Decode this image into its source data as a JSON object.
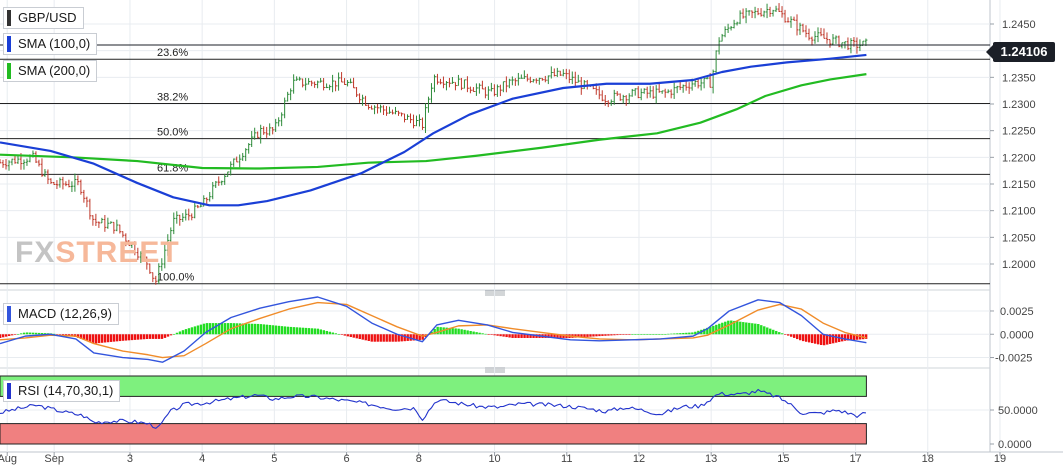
{
  "labels": {
    "symbol": "GBP/USD",
    "sma100": "SMA (100,0)",
    "sma200": "SMA (200,0)",
    "macd": "MACD (12,26,9)",
    "rsi": "RSI (14,70,30,1)",
    "last_price": "1.24106",
    "watermark_a": "FX",
    "watermark_b": "STREET"
  },
  "colors": {
    "candle_up": "#2e8b3a",
    "candle_down": "#c0392b",
    "sma100": "#1a3fd6",
    "sma200": "#22bb22",
    "macd_line": "#3355dd",
    "signal_line": "#f08c2a",
    "hist_pos": "#22dd22",
    "hist_neg": "#ee1111",
    "rsi_line": "#2233cc",
    "rsi_overbought": "#7ef07e",
    "rsi_oversold": "#f08080",
    "fib_line": "#222222",
    "grid": "#e8ecf0"
  },
  "chart_data": {
    "type": "candlestick",
    "price_axis": {
      "min": 1.1955,
      "max": 1.2495,
      "ticks": [
        "1.2450",
        "1.2400",
        "1.2350",
        "1.2300",
        "1.2250",
        "1.2200",
        "1.2150",
        "1.2100",
        "1.2050",
        "1.2000"
      ]
    },
    "x_axis": {
      "labels": [
        {
          "t": "Aug",
          "x": 0.1
        },
        {
          "t": "Sep",
          "x": 0.75
        },
        {
          "t": "3",
          "x": 1.8
        },
        {
          "t": "4",
          "x": 2.8
        },
        {
          "t": "5",
          "x": 3.8
        },
        {
          "t": "6",
          "x": 4.8
        },
        {
          "t": "8",
          "x": 5.8
        },
        {
          "t": "10",
          "x": 6.85
        },
        {
          "t": "11",
          "x": 7.85
        },
        {
          "t": "12",
          "x": 8.85
        },
        {
          "t": "13",
          "x": 9.85
        },
        {
          "t": "15",
          "x": 10.85
        },
        {
          "t": "17",
          "x": 11.85
        },
        {
          "t": "18",
          "x": 12.85
        },
        {
          "t": "19",
          "x": 13.85
        }
      ],
      "range": [
        0,
        14
      ]
    },
    "price_anchors": [
      [
        0.0,
        1.219
      ],
      [
        0.45,
        1.22
      ],
      [
        0.7,
        1.215
      ],
      [
        1.1,
        1.215
      ],
      [
        1.3,
        1.208
      ],
      [
        1.6,
        1.207
      ],
      [
        2.05,
        1.2
      ],
      [
        2.15,
        1.1965
      ],
      [
        2.4,
        1.208
      ],
      [
        2.6,
        1.209
      ],
      [
        2.8,
        1.211
      ],
      [
        3.0,
        1.215
      ],
      [
        3.3,
        1.22
      ],
      [
        3.6,
        1.225
      ],
      [
        3.8,
        1.225
      ],
      [
        4.05,
        1.234
      ],
      [
        4.4,
        1.234
      ],
      [
        4.8,
        1.234
      ],
      [
        5.1,
        1.23
      ],
      [
        5.5,
        1.228
      ],
      [
        5.7,
        1.227
      ],
      [
        5.85,
        1.226
      ],
      [
        6.0,
        1.235
      ],
      [
        6.35,
        1.234
      ],
      [
        6.8,
        1.232
      ],
      [
        7.05,
        1.234
      ],
      [
        7.4,
        1.235
      ],
      [
        7.8,
        1.2355
      ],
      [
        8.0,
        1.234
      ],
      [
        8.4,
        1.231
      ],
      [
        8.8,
        1.232
      ],
      [
        9.2,
        1.232
      ],
      [
        9.6,
        1.234
      ],
      [
        9.85,
        1.234
      ],
      [
        9.95,
        1.242
      ],
      [
        10.2,
        1.246
      ],
      [
        10.45,
        1.247
      ],
      [
        10.7,
        1.248
      ],
      [
        10.9,
        1.246
      ],
      [
        11.2,
        1.243
      ],
      [
        11.5,
        1.242
      ],
      [
        11.8,
        1.241
      ],
      [
        12.0,
        1.2412
      ]
    ],
    "sma100": [
      [
        0.0,
        1.2228
      ],
      [
        0.7,
        1.2212
      ],
      [
        1.3,
        1.2188
      ],
      [
        1.9,
        1.2152
      ],
      [
        2.4,
        1.2125
      ],
      [
        2.9,
        1.211
      ],
      [
        3.3,
        1.211
      ],
      [
        3.7,
        1.2118
      ],
      [
        4.3,
        1.2138
      ],
      [
        5.0,
        1.217
      ],
      [
        5.6,
        1.221
      ],
      [
        6.0,
        1.2245
      ],
      [
        6.5,
        1.228
      ],
      [
        7.1,
        1.231
      ],
      [
        7.8,
        1.233
      ],
      [
        8.4,
        1.2338
      ],
      [
        9.0,
        1.2338
      ],
      [
        9.6,
        1.2345
      ],
      [
        10.0,
        1.236
      ],
      [
        10.4,
        1.237
      ],
      [
        10.9,
        1.2378
      ],
      [
        11.5,
        1.2385
      ],
      [
        12.0,
        1.2392
      ]
    ],
    "sma200": [
      [
        0.0,
        1.2205
      ],
      [
        1.0,
        1.22
      ],
      [
        1.9,
        1.2193
      ],
      [
        2.8,
        1.218
      ],
      [
        3.6,
        1.2179
      ],
      [
        4.4,
        1.2182
      ],
      [
        5.1,
        1.219
      ],
      [
        5.9,
        1.2193
      ],
      [
        6.6,
        1.2203
      ],
      [
        7.5,
        1.2218
      ],
      [
        8.3,
        1.2233
      ],
      [
        9.1,
        1.2245
      ],
      [
        9.7,
        1.2265
      ],
      [
        10.2,
        1.229
      ],
      [
        10.6,
        1.2315
      ],
      [
        11.1,
        1.2335
      ],
      [
        11.5,
        1.2346
      ],
      [
        12.0,
        1.2356
      ]
    ],
    "fibonacci": [
      {
        "label": "23.6%",
        "level": 1.2384
      },
      {
        "label": "38.2%",
        "level": 1.2301
      },
      {
        "label": "50.0%",
        "level": 1.2235
      },
      {
        "label": "61.8%",
        "level": 1.2168
      },
      {
        "label": "100.0%",
        "level": 1.1963
      }
    ],
    "last_price": 1.24106,
    "macd": {
      "axis": {
        "min": -0.0033,
        "max": 0.004,
        "ticks": [
          "0.0025",
          "0.0000",
          "-0.0025"
        ]
      },
      "macd_line": [
        [
          0.0,
          -0.001
        ],
        [
          0.35,
          -0.0002
        ],
        [
          0.7,
          0.0
        ],
        [
          1.05,
          -0.0005
        ],
        [
          1.3,
          -0.002
        ],
        [
          1.7,
          -0.0025
        ],
        [
          2.05,
          -0.0027
        ],
        [
          2.25,
          -0.003
        ],
        [
          2.55,
          -0.0018
        ],
        [
          2.85,
          0.0002
        ],
        [
          3.2,
          0.0018
        ],
        [
          3.6,
          0.0028
        ],
        [
          4.0,
          0.0035
        ],
        [
          4.4,
          0.004
        ],
        [
          4.8,
          0.003
        ],
        [
          5.15,
          0.0012
        ],
        [
          5.5,
          0.0
        ],
        [
          5.85,
          -0.0008
        ],
        [
          6.05,
          0.001
        ],
        [
          6.35,
          0.0015
        ],
        [
          6.75,
          0.001
        ],
        [
          7.1,
          0.0002
        ],
        [
          7.5,
          -0.0002
        ],
        [
          7.9,
          -0.0006
        ],
        [
          8.3,
          -0.0007
        ],
        [
          8.75,
          -0.0006
        ],
        [
          9.15,
          -0.0005
        ],
        [
          9.6,
          -0.0002
        ],
        [
          9.8,
          0.0006
        ],
        [
          10.1,
          0.0025
        ],
        [
          10.5,
          0.0037
        ],
        [
          10.8,
          0.0034
        ],
        [
          11.1,
          0.002
        ],
        [
          11.4,
          0.0
        ],
        [
          11.7,
          -0.0005
        ],
        [
          12.0,
          -0.0009
        ]
      ],
      "signal_line": [
        [
          0.0,
          -0.0006
        ],
        [
          0.35,
          -0.0004
        ],
        [
          0.7,
          -0.0001
        ],
        [
          1.05,
          -0.0002
        ],
        [
          1.3,
          -0.001
        ],
        [
          1.7,
          -0.0018
        ],
        [
          2.05,
          -0.0022
        ],
        [
          2.25,
          -0.0025
        ],
        [
          2.55,
          -0.0023
        ],
        [
          2.85,
          -0.001
        ],
        [
          3.2,
          0.0006
        ],
        [
          3.6,
          0.0017
        ],
        [
          4.0,
          0.0027
        ],
        [
          4.4,
          0.0034
        ],
        [
          4.8,
          0.0032
        ],
        [
          5.15,
          0.002
        ],
        [
          5.5,
          0.0008
        ],
        [
          5.85,
          -0.0002
        ],
        [
          6.05,
          0.0002
        ],
        [
          6.35,
          0.0009
        ],
        [
          6.75,
          0.001
        ],
        [
          7.1,
          0.0006
        ],
        [
          7.5,
          0.0002
        ],
        [
          7.9,
          -0.0002
        ],
        [
          8.3,
          -0.0005
        ],
        [
          8.75,
          -0.0006
        ],
        [
          9.15,
          -0.0005
        ],
        [
          9.6,
          -0.0004
        ],
        [
          9.8,
          -0.0001
        ],
        [
          10.1,
          0.001
        ],
        [
          10.5,
          0.0026
        ],
        [
          10.8,
          0.0032
        ],
        [
          11.1,
          0.0027
        ],
        [
          11.4,
          0.0012
        ],
        [
          11.7,
          0.0002
        ],
        [
          12.0,
          -0.0004
        ]
      ]
    },
    "rsi": {
      "axis": {
        "min": 0,
        "max": 100,
        "ticks": [
          "50.0000",
          "0.0000"
        ]
      },
      "overbought": 70,
      "oversold": 30,
      "values": [
        [
          0.0,
          46
        ],
        [
          0.25,
          52
        ],
        [
          0.5,
          57
        ],
        [
          0.7,
          52
        ],
        [
          0.9,
          47
        ],
        [
          1.15,
          42
        ],
        [
          1.3,
          32
        ],
        [
          1.6,
          34
        ],
        [
          1.85,
          33
        ],
        [
          2.05,
          30
        ],
        [
          2.2,
          24
        ],
        [
          2.35,
          47
        ],
        [
          2.55,
          58
        ],
        [
          2.8,
          60
        ],
        [
          3.05,
          64
        ],
        [
          3.3,
          68
        ],
        [
          3.55,
          72
        ],
        [
          3.8,
          66
        ],
        [
          4.05,
          70
        ],
        [
          4.3,
          70
        ],
        [
          4.6,
          66
        ],
        [
          4.9,
          62
        ],
        [
          5.15,
          58
        ],
        [
          5.45,
          52
        ],
        [
          5.75,
          53
        ],
        [
          5.85,
          37
        ],
        [
          6.05,
          65
        ],
        [
          6.35,
          60
        ],
        [
          6.65,
          55
        ],
        [
          6.9,
          54
        ],
        [
          7.2,
          59
        ],
        [
          7.5,
          58
        ],
        [
          7.85,
          56
        ],
        [
          8.15,
          52
        ],
        [
          8.4,
          48
        ],
        [
          8.65,
          54
        ],
        [
          8.9,
          50
        ],
        [
          9.15,
          44
        ],
        [
          9.45,
          55
        ],
        [
          9.7,
          56
        ],
        [
          9.95,
          74
        ],
        [
          10.25,
          73
        ],
        [
          10.5,
          78
        ],
        [
          10.75,
          70
        ],
        [
          10.9,
          62
        ],
        [
          11.1,
          46
        ],
        [
          11.35,
          45
        ],
        [
          11.6,
          50
        ],
        [
          11.9,
          41
        ],
        [
          12.0,
          47
        ]
      ]
    }
  }
}
